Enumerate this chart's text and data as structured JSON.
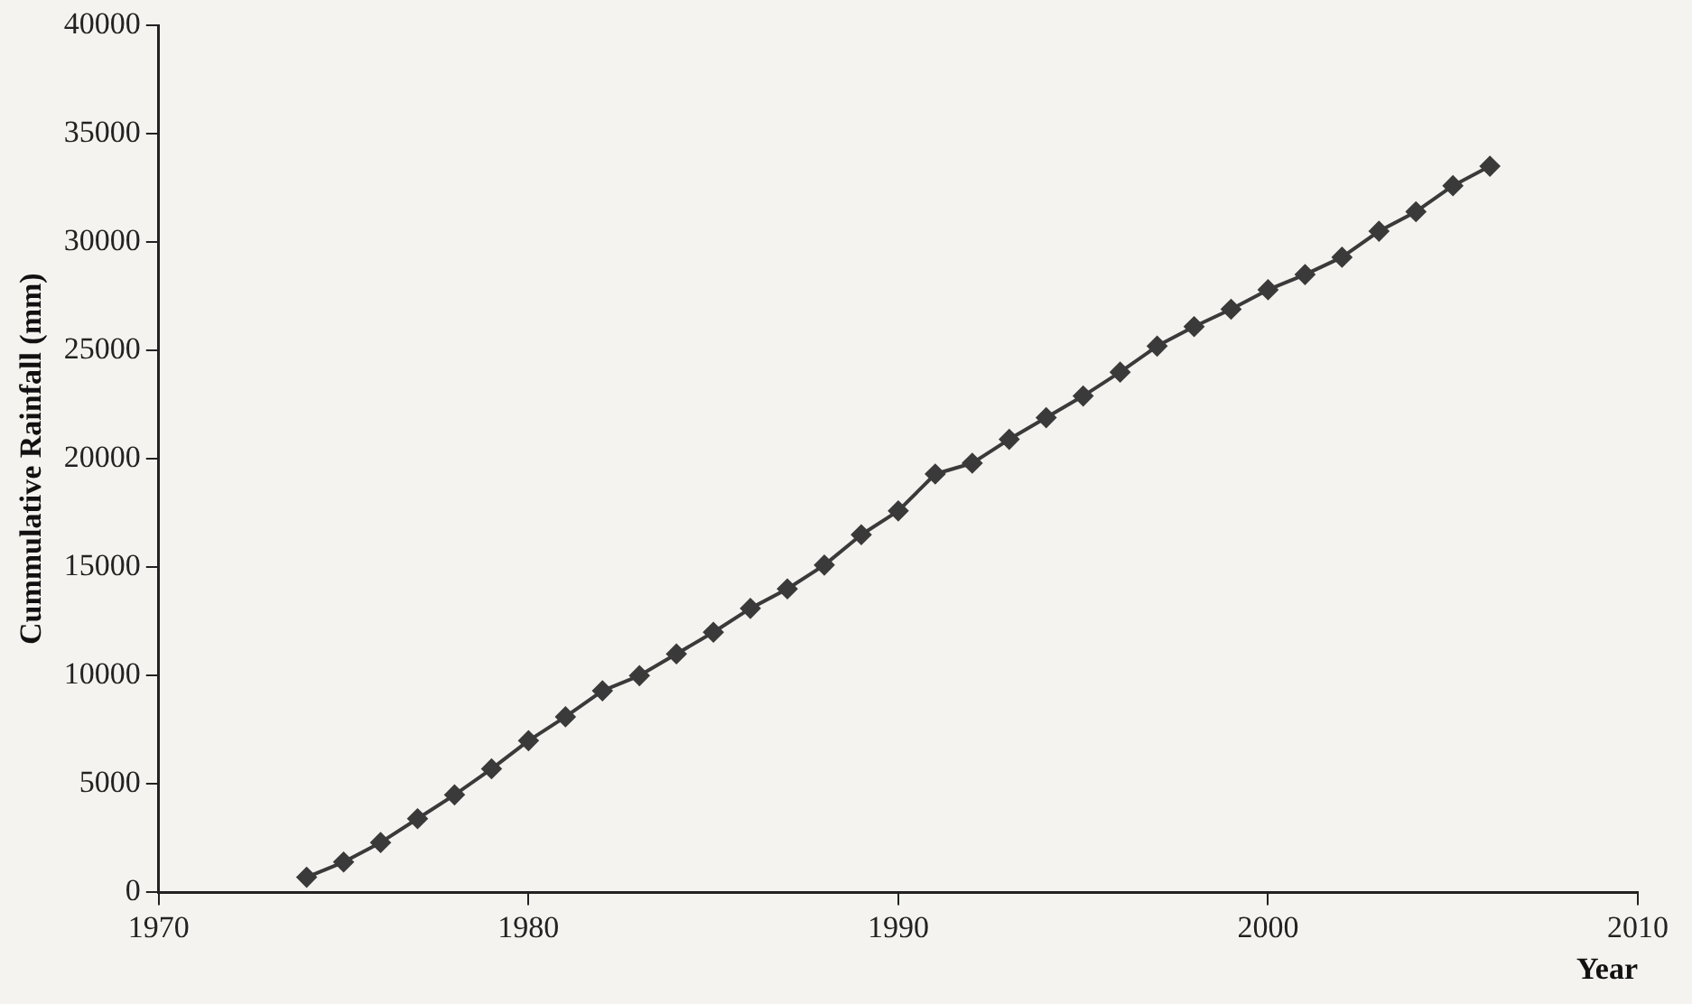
{
  "chart_data": {
    "type": "line",
    "xlabel": "Year",
    "ylabel": "Cummulative Rainfall (mm)",
    "x": [
      1974,
      1975,
      1976,
      1977,
      1978,
      1979,
      1980,
      1981,
      1982,
      1983,
      1984,
      1985,
      1986,
      1987,
      1988,
      1989,
      1990,
      1991,
      1992,
      1993,
      1994,
      1995,
      1996,
      1997,
      1998,
      1999,
      2000,
      2001,
      2002,
      2003,
      2004,
      2005,
      2006
    ],
    "series": [
      {
        "color": "#3a3a3a",
        "values": [
          700,
          1400,
          2300,
          3400,
          4500,
          5700,
          7000,
          8100,
          9300,
          10000,
          11000,
          12000,
          13100,
          14000,
          15100,
          16500,
          17600,
          19300,
          19800,
          20900,
          21900,
          22900,
          24000,
          25200,
          26100,
          26900,
          27800,
          28500,
          29300,
          30500,
          31400,
          32600,
          33500
        ]
      }
    ],
    "xlim": [
      1970,
      2010
    ],
    "xticks": [
      1970,
      1980,
      1990,
      2000,
      2010
    ],
    "ylim": [
      0,
      40000
    ],
    "yticks": [
      0,
      5000,
      10000,
      15000,
      20000,
      25000,
      30000,
      35000,
      40000
    ],
    "grid": false,
    "legend": false,
    "marker": "diamond",
    "line_style": "solid"
  }
}
